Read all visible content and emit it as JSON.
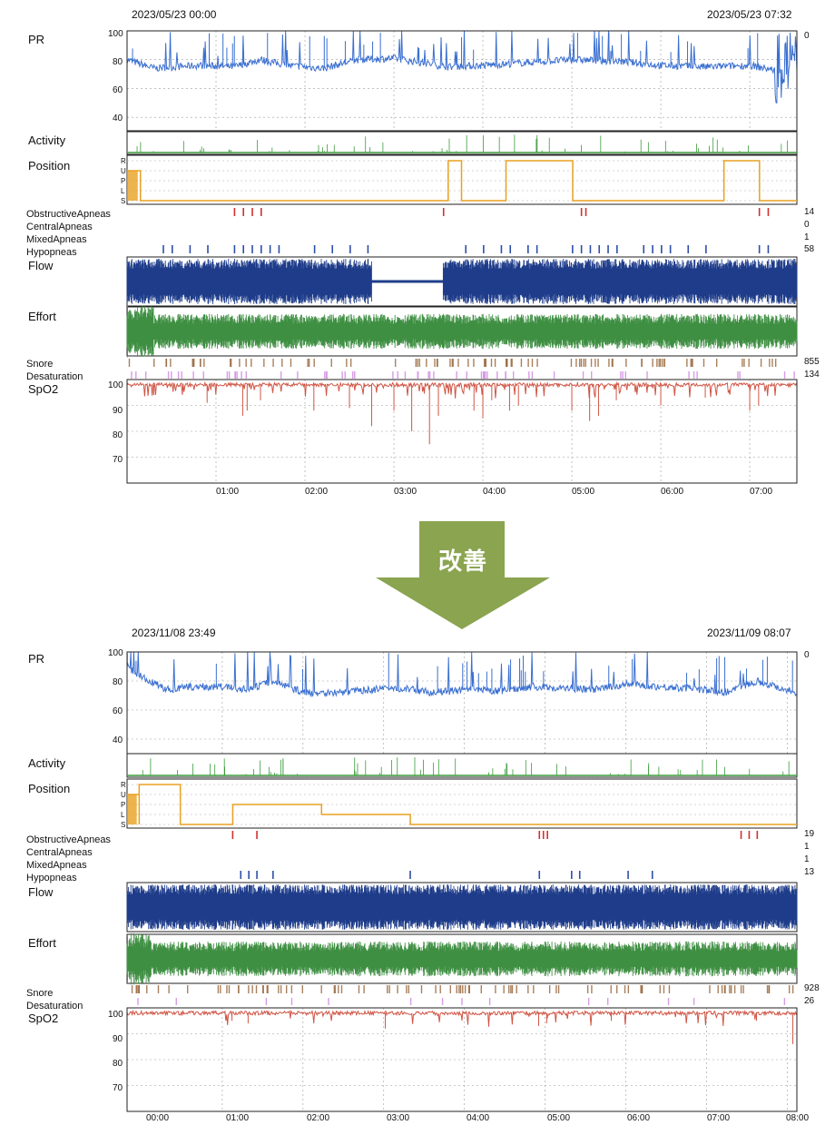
{
  "arrow": {
    "label": "改善",
    "color": "#8aa450"
  },
  "colors": {
    "pr": "#3a6fd0",
    "activity": "#3b9a3b",
    "position": "#e8a020",
    "obstructive": "#d23030",
    "mixed": "#2d4faa",
    "hypopnea": "#2d4faa",
    "flow": "#1e3c8a",
    "effort": "#3f8f43",
    "snore": "#9a6a40",
    "desat": "#d79be6",
    "spo2": "#d05545"
  },
  "labels": {
    "pr": "PR",
    "activity": "Activity",
    "position": "Position",
    "obstructive": "ObstructiveApneas",
    "central": "CentralApneas",
    "mixed": "MixedApneas",
    "hypopneas": "Hypopneas",
    "flow": "Flow",
    "effort": "Effort",
    "snore": "Snore",
    "desaturation": "Desaturation",
    "spo2": "SpO2",
    "position_codes": [
      "R",
      "U",
      "P",
      "L",
      "S"
    ]
  },
  "chart_data": [
    {
      "type": "line",
      "start": "2023/05/23 00:00",
      "end": "2023/05/23 07:32",
      "pr_top_label": "0",
      "pr_ticks": [
        "100",
        "80",
        "60",
        "40"
      ],
      "spo2_ticks": [
        "100",
        "90",
        "80",
        "70"
      ],
      "x_ticks": [
        "01:00",
        "02:00",
        "03:00",
        "04:00",
        "05:00",
        "06:00",
        "07:00"
      ],
      "counts": {
        "obstructive": "14",
        "central": "0",
        "mixed": "1",
        "hypopneas": "58",
        "snore": "855",
        "desaturation": "134"
      },
      "ylim_pr": [
        30,
        100
      ],
      "ylim_spo2": [
        60,
        100
      ],
      "duration_h": 7.53,
      "pr_baseline": [
        [
          0,
          80
        ],
        [
          0.3,
          74
        ],
        [
          0.8,
          76
        ],
        [
          1.2,
          75
        ],
        [
          1.5,
          80
        ],
        [
          1.8,
          76
        ],
        [
          2.2,
          74
        ],
        [
          2.6,
          80
        ],
        [
          3.0,
          81
        ],
        [
          3.3,
          78
        ],
        [
          3.6,
          75
        ],
        [
          4.0,
          76
        ],
        [
          4.5,
          78
        ],
        [
          5.0,
          80
        ],
        [
          5.5,
          79
        ],
        [
          6.0,
          76
        ],
        [
          6.5,
          75
        ],
        [
          7.0,
          76
        ],
        [
          7.53,
          70
        ]
      ],
      "position_steps": [
        [
          0,
          1
        ],
        [
          0.15,
          4
        ],
        [
          3.6,
          4
        ],
        [
          3.61,
          0
        ],
        [
          3.75,
          0
        ],
        [
          3.76,
          4
        ],
        [
          4.25,
          4
        ],
        [
          4.26,
          0
        ],
        [
          5.0,
          0
        ],
        [
          5.01,
          4
        ],
        [
          6.7,
          4
        ],
        [
          6.71,
          0
        ],
        [
          7.1,
          0
        ],
        [
          7.11,
          4
        ],
        [
          7.53,
          4
        ]
      ],
      "flow_gap": [
        2.75,
        3.55
      ],
      "obstructive_marks": [
        1.2,
        1.3,
        1.4,
        1.5,
        3.55,
        5.1,
        5.15,
        7.1,
        7.2
      ],
      "hypopnea_marks": [
        0.4,
        0.5,
        0.7,
        0.9,
        1.2,
        1.3,
        1.4,
        1.5,
        1.6,
        1.7,
        2.1,
        2.3,
        2.5,
        2.7,
        3.8,
        4.0,
        4.2,
        4.3,
        4.5,
        4.6,
        5.0,
        5.1,
        5.2,
        5.3,
        5.4,
        5.5,
        5.8,
        5.9,
        6.0,
        6.1,
        6.3,
        6.5,
        7.1,
        7.2
      ],
      "spo2_dips": [
        [
          0.3,
          94
        ],
        [
          0.9,
          91
        ],
        [
          1.3,
          86
        ],
        [
          1.35,
          88
        ],
        [
          1.5,
          92
        ],
        [
          2.1,
          88
        ],
        [
          2.5,
          89
        ],
        [
          2.75,
          82
        ],
        [
          3.0,
          88
        ],
        [
          3.2,
          80
        ],
        [
          3.4,
          75
        ],
        [
          3.5,
          86
        ],
        [
          3.9,
          88
        ],
        [
          4.0,
          85
        ],
        [
          4.1,
          92
        ],
        [
          4.3,
          88
        ],
        [
          4.4,
          90
        ],
        [
          5.0,
          88
        ],
        [
          5.2,
          84
        ],
        [
          5.3,
          86
        ],
        [
          5.5,
          92
        ],
        [
          6.0,
          90
        ],
        [
          6.5,
          93
        ],
        [
          7.0,
          88
        ],
        [
          7.1,
          90
        ]
      ]
    },
    {
      "type": "line",
      "start": "2023/11/08 23:49",
      "end": "2023/11/09 08:07",
      "pr_top_label": "0",
      "pr_ticks": [
        "100",
        "80",
        "60",
        "40"
      ],
      "spo2_ticks": [
        "100",
        "90",
        "80",
        "70"
      ],
      "x_ticks": [
        "00:00",
        "01:00",
        "02:00",
        "03:00",
        "04:00",
        "05:00",
        "06:00",
        "07:00",
        "08:00"
      ],
      "counts": {
        "obstructive": "19",
        "central": "1",
        "mixed": "1",
        "hypopneas": "13",
        "snore": "928",
        "desaturation": "26"
      },
      "ylim_pr": [
        30,
        100
      ],
      "ylim_spo2": [
        60,
        100
      ],
      "duration_h": 8.3,
      "pr_baseline": [
        [
          0,
          90
        ],
        [
          0.2,
          82
        ],
        [
          0.5,
          74
        ],
        [
          0.8,
          76
        ],
        [
          1.2,
          76
        ],
        [
          1.5,
          74
        ],
        [
          1.8,
          80
        ],
        [
          2.2,
          72
        ],
        [
          2.6,
          72
        ],
        [
          3.0,
          74
        ],
        [
          3.4,
          75
        ],
        [
          3.8,
          72
        ],
        [
          4.2,
          74
        ],
        [
          4.6,
          73
        ],
        [
          5.0,
          76
        ],
        [
          5.4,
          75
        ],
        [
          5.8,
          74
        ],
        [
          6.2,
          78
        ],
        [
          6.6,
          76
        ],
        [
          7.0,
          75
        ],
        [
          7.4,
          72
        ],
        [
          7.8,
          80
        ],
        [
          8.3,
          72
        ]
      ],
      "position_steps": [
        [
          0,
          1
        ],
        [
          0.15,
          4
        ],
        [
          0.15,
          0
        ],
        [
          0.65,
          0
        ],
        [
          0.66,
          4
        ],
        [
          1.3,
          4
        ],
        [
          1.31,
          2
        ],
        [
          2.4,
          2
        ],
        [
          2.41,
          3
        ],
        [
          3.5,
          3
        ],
        [
          3.51,
          4
        ],
        [
          8.3,
          4
        ]
      ],
      "flow_gap": null,
      "obstructive_marks": [
        1.3,
        1.6,
        5.1,
        5.15,
        5.2,
        7.6,
        7.7,
        7.8
      ],
      "hypopnea_marks": [
        1.4,
        1.5,
        1.6,
        1.8,
        3.5,
        5.1,
        5.5,
        5.6,
        6.2,
        6.5
      ],
      "spo2_dips": [
        [
          1.3,
          95
        ],
        [
          1.5,
          94
        ],
        [
          3.2,
          92
        ],
        [
          5.1,
          93
        ],
        [
          5.2,
          94
        ],
        [
          6.0,
          95
        ],
        [
          7.8,
          95
        ],
        [
          8.25,
          86
        ]
      ]
    }
  ]
}
